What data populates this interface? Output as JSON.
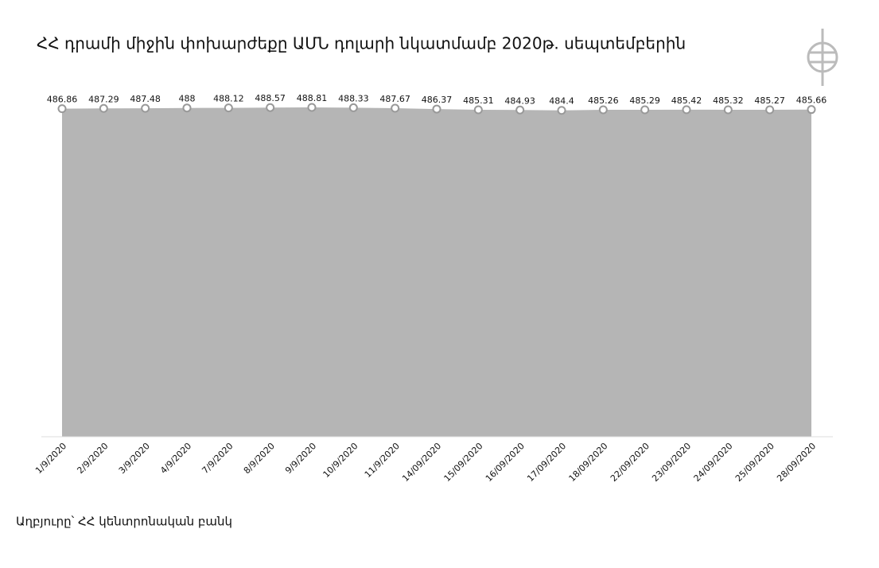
{
  "chart_data": {
    "type": "area",
    "title": "ՀՀ դրամի միջին փոխարժեքը ԱՄՆ դոլարի նկատմամբ 2020թ. սեպտեմբերին",
    "source": "Աղբյուրը՝ ՀՀ կենտրոնական բանկ",
    "categories": [
      "1/9/2020",
      "2/9/2020",
      "3/9/2020",
      "4/9/2020",
      "7/9/2020",
      "8/9/2020",
      "9/9/2020",
      "10/9/2020",
      "11/9/2020",
      "14/09/2020",
      "15/09/2020",
      "16/09/2020",
      "17/09/2020",
      "18/09/2020",
      "22/09/2020",
      "23/09/2020",
      "24/09/2020",
      "25/09/2020",
      "28/09/2020"
    ],
    "values": [
      486.86,
      487.29,
      487.48,
      488,
      488.12,
      488.57,
      488.81,
      488.33,
      487.67,
      486.37,
      485.31,
      484.93,
      484.4,
      485.26,
      485.29,
      485.42,
      485.32,
      485.27,
      485.66
    ],
    "color": "#b5b5b5",
    "ylim": [
      0,
      490
    ]
  }
}
